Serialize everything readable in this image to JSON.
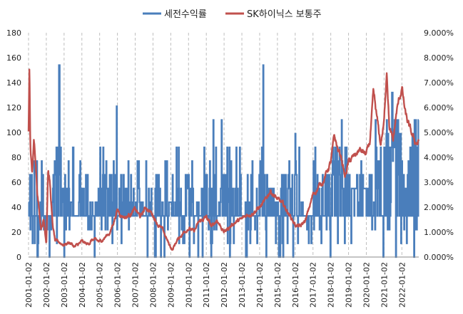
{
  "chart_data": {
    "type": "line",
    "legend_position": "top-center",
    "grid": {
      "horizontal": false,
      "vertical": true,
      "vertical_style": "dashed"
    },
    "y_left": {
      "min": 0,
      "max": 180,
      "ticks": [
        "0",
        "20",
        "40",
        "60",
        "80",
        "100",
        "120",
        "140",
        "160",
        "180"
      ]
    },
    "y_right": {
      "min": 0,
      "max": 9,
      "unit": "%",
      "ticks": [
        "0.000%",
        "1.000%",
        "2.000%",
        "3.000%",
        "4.000%",
        "5.000%",
        "6.000%",
        "7.000%",
        "8.000%",
        "9.000%"
      ]
    },
    "x_labels": [
      "2001-01-02",
      "2002-01-02",
      "2003-01-02",
      "2004-01-02",
      "2005-01-02",
      "2006-01-02",
      "2007-01-02",
      "2008-01-02",
      "2009-01-02",
      "2010-01-02",
      "2011-01-02",
      "2012-01-02",
      "2013-01-02",
      "2014-01-02",
      "2015-01-02",
      "2016-01-02",
      "2017-01-02",
      "2018-01-02",
      "2019-01-02",
      "2020-01-02",
      "2021-01-02",
      "2022-01-02"
    ],
    "series": [
      {
        "name": "세전수익률",
        "axis": "left",
        "color": "#4a7ebb",
        "x": [
          2001.0,
          2001.1,
          2001.3,
          2001.5,
          2001.7,
          2002.0,
          2002.2,
          2002.4,
          2002.6,
          2002.8,
          2003.0,
          2003.3,
          2003.6,
          2004.0,
          2004.3,
          2004.6,
          2005.0,
          2005.3,
          2005.6,
          2006.0,
          2006.2,
          2006.5,
          2006.8,
          2007.0,
          2007.3,
          2007.6,
          2008.0,
          2008.3,
          2008.6,
          2009.0,
          2009.3,
          2009.6,
          2010.0,
          2010.3,
          2010.6,
          2011.0,
          2011.3,
          2011.6,
          2012.0,
          2012.3,
          2012.6,
          2013.0,
          2013.3,
          2013.6,
          2014.0,
          2014.3,
          2014.6,
          2015.0,
          2015.3,
          2015.6,
          2016.0,
          2016.3,
          2016.6,
          2017.0,
          2017.3,
          2017.6,
          2018.0,
          2018.3,
          2018.6,
          2019.0,
          2019.3,
          2019.6,
          2020.0,
          2020.3,
          2020.6,
          2021.0,
          2021.2,
          2021.5,
          2021.8,
          2022.0,
          2022.2,
          2022.5,
          2022.75
        ],
        "y": [
          44,
          22,
          44,
          0,
          33,
          22,
          0,
          66,
          88,
          33,
          66,
          44,
          33,
          55,
          66,
          33,
          55,
          66,
          33,
          44,
          66,
          55,
          33,
          66,
          44,
          33,
          55,
          66,
          33,
          44,
          33,
          55,
          66,
          33,
          44,
          66,
          55,
          33,
          66,
          44,
          33,
          33,
          44,
          33,
          33,
          66,
          55,
          44,
          66,
          55,
          66,
          44,
          33,
          33,
          55,
          66,
          66,
          88,
          55,
          66,
          55,
          66,
          55,
          66,
          77,
          88,
          100,
          80,
          66,
          66,
          55,
          88,
          110
        ],
        "spikes": [
          [
            2002.72,
            154
          ],
          [
            2005.95,
            121
          ],
          [
            2014.2,
            154
          ],
          [
            2021.45,
            132
          ],
          [
            2020.5,
            110
          ],
          [
            2018.6,
            110
          ],
          [
            2011.4,
            110
          ],
          [
            2011.85,
            110
          ],
          [
            2016.0,
            99
          ],
          [
            2003.5,
            88
          ]
        ]
      },
      {
        "name": "SK하이닉스 보통주",
        "axis": "right",
        "color": "#c0504d",
        "x": [
          2001.0,
          2001.05,
          2001.1,
          2001.2,
          2001.3,
          2001.4,
          2001.5,
          2001.7,
          2001.85,
          2002.0,
          2002.1,
          2002.2,
          2002.35,
          2002.5,
          2002.7,
          2003.0,
          2003.3,
          2003.6,
          2004.0,
          2004.3,
          2004.6,
          2005.0,
          2005.3,
          2005.6,
          2006.0,
          2006.2,
          2006.5,
          2006.8,
          2007.0,
          2007.3,
          2007.6,
          2008.0,
          2008.3,
          2008.6,
          2008.9,
          2009.1,
          2009.3,
          2009.6,
          2010.0,
          2010.3,
          2010.6,
          2011.0,
          2011.3,
          2011.6,
          2012.0,
          2012.3,
          2012.6,
          2013.0,
          2013.3,
          2013.6,
          2014.0,
          2014.3,
          2014.6,
          2015.0,
          2015.3,
          2015.6,
          2016.0,
          2016.3,
          2016.6,
          2017.0,
          2017.3,
          2017.6,
          2018.0,
          2018.2,
          2018.4,
          2018.6,
          2018.8,
          2019.0,
          2019.3,
          2019.6,
          2020.0,
          2020.2,
          2020.4,
          2020.6,
          2020.8,
          2021.0,
          2021.15,
          2021.3,
          2021.5,
          2021.7,
          2022.0,
          2022.2,
          2022.4,
          2022.6,
          2022.75
        ],
        "y": [
          5.0,
          7.6,
          4.5,
          3.3,
          4.6,
          3.9,
          2.6,
          1.2,
          1.5,
          0.6,
          3.6,
          3.0,
          1.3,
          0.6,
          0.6,
          0.5,
          0.6,
          0.4,
          0.6,
          0.5,
          0.7,
          0.6,
          0.8,
          1.0,
          1.9,
          1.7,
          1.6,
          1.8,
          1.9,
          1.6,
          2.0,
          1.7,
          1.3,
          1.0,
          0.5,
          0.3,
          0.6,
          0.9,
          1.2,
          1.0,
          1.4,
          1.6,
          1.2,
          1.5,
          1.0,
          1.2,
          1.4,
          1.5,
          1.7,
          1.8,
          2.0,
          2.2,
          2.7,
          2.3,
          2.1,
          1.8,
          1.3,
          1.2,
          1.5,
          2.5,
          2.8,
          3.1,
          3.8,
          4.8,
          4.3,
          4.0,
          3.2,
          3.8,
          4.0,
          4.3,
          4.1,
          4.6,
          6.5,
          5.5,
          4.5,
          5.4,
          7.6,
          5.2,
          4.6,
          5.8,
          6.8,
          5.7,
          5.2,
          4.8,
          4.6
        ]
      }
    ]
  }
}
